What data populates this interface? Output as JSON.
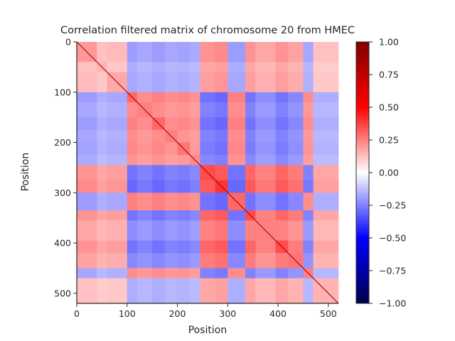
{
  "chart_data": {
    "type": "heatmap",
    "title": "Correlation filtered matrix of chromosome 20 from HMEC",
    "xlabel": "Position",
    "ylabel": "Position",
    "matrix_size": 520,
    "xlim": [
      0,
      520
    ],
    "ylim": [
      520,
      0
    ],
    "x_ticks": [
      0,
      100,
      200,
      300,
      400,
      500
    ],
    "y_ticks": [
      0,
      100,
      200,
      300,
      400,
      500
    ],
    "colormap": "seismic",
    "color_range": [
      -1.0,
      1.0
    ],
    "colorbar_ticks": [
      "1.00",
      "0.75",
      "0.50",
      "0.25",
      "0.00",
      "−0.25",
      "−0.50",
      "−0.75",
      "−1.00"
    ],
    "colorbar_tick_values": [
      1.0,
      0.75,
      0.5,
      0.25,
      0.0,
      -0.25,
      -0.5,
      -0.75,
      -1.0
    ],
    "diagonal_value": 1.0,
    "block_boundaries": [
      0,
      40,
      60,
      100,
      120,
      150,
      175,
      200,
      225,
      245,
      275,
      300,
      335,
      355,
      395,
      420,
      450,
      470,
      520
    ],
    "block_compartments": [
      1,
      1,
      1,
      -1,
      -1,
      -1,
      -1,
      -1,
      -1,
      1,
      1,
      -1,
      1,
      1,
      1,
      1,
      -1,
      1
    ],
    "block_strength": [
      0.15,
      0.1,
      0.12,
      0.25,
      0.2,
      0.25,
      0.2,
      0.22,
      0.18,
      0.3,
      0.35,
      0.25,
      0.3,
      0.2,
      0.3,
      0.22,
      0.2,
      0.1
    ]
  }
}
